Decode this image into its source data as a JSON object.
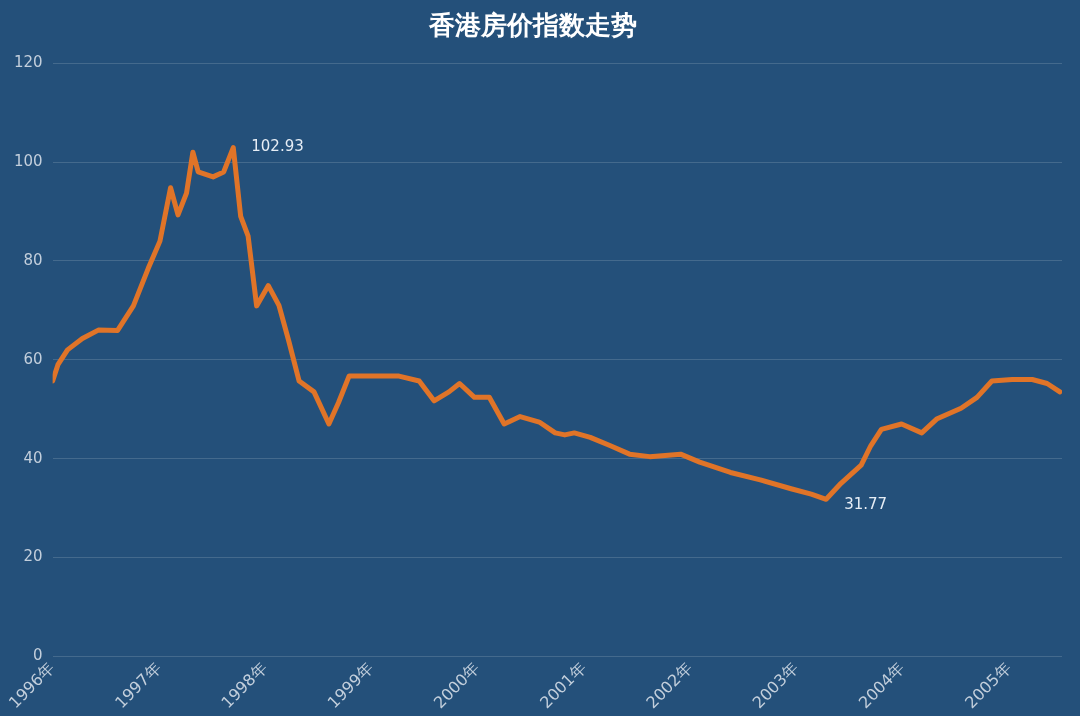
{
  "chart_data": {
    "type": "line",
    "title": "香港房价指数走势",
    "x": [
      1996.0,
      1996.05,
      1996.14,
      1996.28,
      1996.43,
      1996.61,
      1996.76,
      1996.9,
      1997.01,
      1997.11,
      1997.18,
      1997.26,
      1997.32,
      1997.37,
      1997.51,
      1997.61,
      1997.7,
      1997.77,
      1997.84,
      1997.92,
      1998.03,
      1998.13,
      1998.22,
      1998.32,
      1998.46,
      1998.6,
      1998.69,
      1998.79,
      1998.98,
      1999.26,
      1999.45,
      1999.59,
      1999.73,
      1999.83,
      1999.97,
      2000.11,
      2000.25,
      2000.4,
      2000.58,
      2000.73,
      2000.82,
      2000.91,
      2001.06,
      2001.25,
      2001.43,
      2001.62,
      2001.91,
      2002.09,
      2002.38,
      2002.66,
      2002.95,
      2003.14,
      2003.28,
      2003.42,
      2003.61,
      2003.7,
      2003.8,
      2003.99,
      2004.18,
      2004.32,
      2004.55,
      2004.7,
      2004.84,
      2005.03,
      2005.22,
      2005.36,
      2005.48
    ],
    "series": [
      {
        "color": "#e07428",
        "values": [
          55.7,
          59,
          62,
          64.3,
          66,
          65.9,
          70.9,
          78.5,
          84,
          94.8,
          89.3,
          93.7,
          102,
          98,
          97,
          98,
          102.93,
          89,
          85,
          70.9,
          75,
          71,
          64,
          55.7,
          53.5,
          47,
          51.3,
          56.7,
          56.7,
          56.7,
          55.7,
          51.7,
          53.5,
          55.2,
          52.4,
          52.4,
          47,
          48.5,
          47.4,
          45.2,
          44.8,
          45.2,
          44.3,
          42.6,
          40.9,
          40.4,
          40.9,
          39.3,
          37.2,
          35.7,
          33.9,
          32.8,
          31.77,
          35,
          38.7,
          42.6,
          45.9,
          47,
          45.2,
          48,
          50.2,
          52.4,
          55.7,
          56,
          56,
          55.2,
          53.5
        ]
      }
    ],
    "xlim": [
      1996,
      2005.5
    ],
    "xticks": [
      {
        "value": 1996,
        "label": "1996年"
      },
      {
        "value": 1997,
        "label": "1997年"
      },
      {
        "value": 1998,
        "label": "1998年"
      },
      {
        "value": 1999,
        "label": "1999年"
      },
      {
        "value": 2000,
        "label": "2000年"
      },
      {
        "value": 2001,
        "label": "2001年"
      },
      {
        "value": 2002,
        "label": "2002年"
      },
      {
        "value": 2003,
        "label": "2003年"
      },
      {
        "value": 2004,
        "label": "2004年"
      },
      {
        "value": 2005,
        "label": "2005年"
      }
    ],
    "ylim": [
      0,
      120
    ],
    "yticks": [
      0,
      20,
      40,
      60,
      80,
      100,
      120
    ],
    "grid": "y",
    "legend": false,
    "marker": "none",
    "line_style": "solid",
    "annotations": [
      {
        "text": "102.93",
        "x": 1997.7,
        "y": 102.93
      },
      {
        "text": "31.77",
        "x": 2003.28,
        "y": 31.77
      }
    ]
  }
}
